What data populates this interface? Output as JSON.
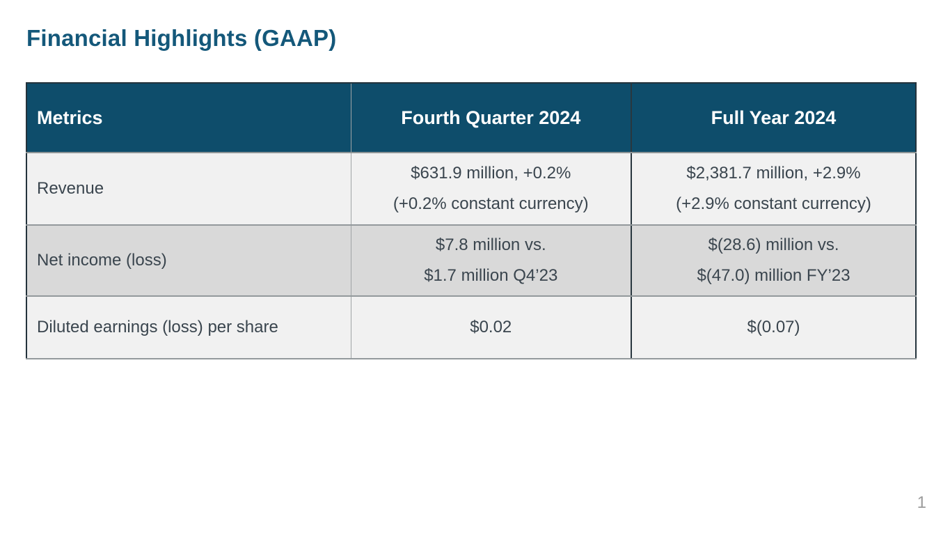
{
  "slide": {
    "title": "Financial Highlights (GAAP)",
    "page_number": "1"
  },
  "colors": {
    "title_text": "#14587A",
    "header_bg": "#0E4D6B",
    "header_text": "#FFFFFF",
    "row_light_bg": "#F1F1F1",
    "row_shaded_bg": "#D9D9D9",
    "body_text": "#3A454E",
    "outer_border": "#24333C",
    "inner_border_gray": "#93999C"
  },
  "table": {
    "columns": {
      "metrics": "Metrics",
      "q4": "Fourth Quarter 2024",
      "fy": "Full Year 2024"
    },
    "rows": [
      {
        "metric": "Revenue",
        "q4_lines": [
          "$631.9 million, +0.2%",
          "(+0.2% constant currency)"
        ],
        "fy_lines": [
          "$2,381.7 million, +2.9%",
          "(+2.9% constant currency)"
        ]
      },
      {
        "metric": "Net income (loss)",
        "q4_lines": [
          "$7.8 million vs.",
          "$1.7 million Q4’23"
        ],
        "fy_lines": [
          "$(28.6) million vs.",
          "$(47.0) million FY’23"
        ]
      },
      {
        "metric": "Diluted earnings (loss) per share",
        "q4_lines": [
          "$0.02"
        ],
        "fy_lines": [
          "$(0.07)"
        ]
      }
    ]
  }
}
